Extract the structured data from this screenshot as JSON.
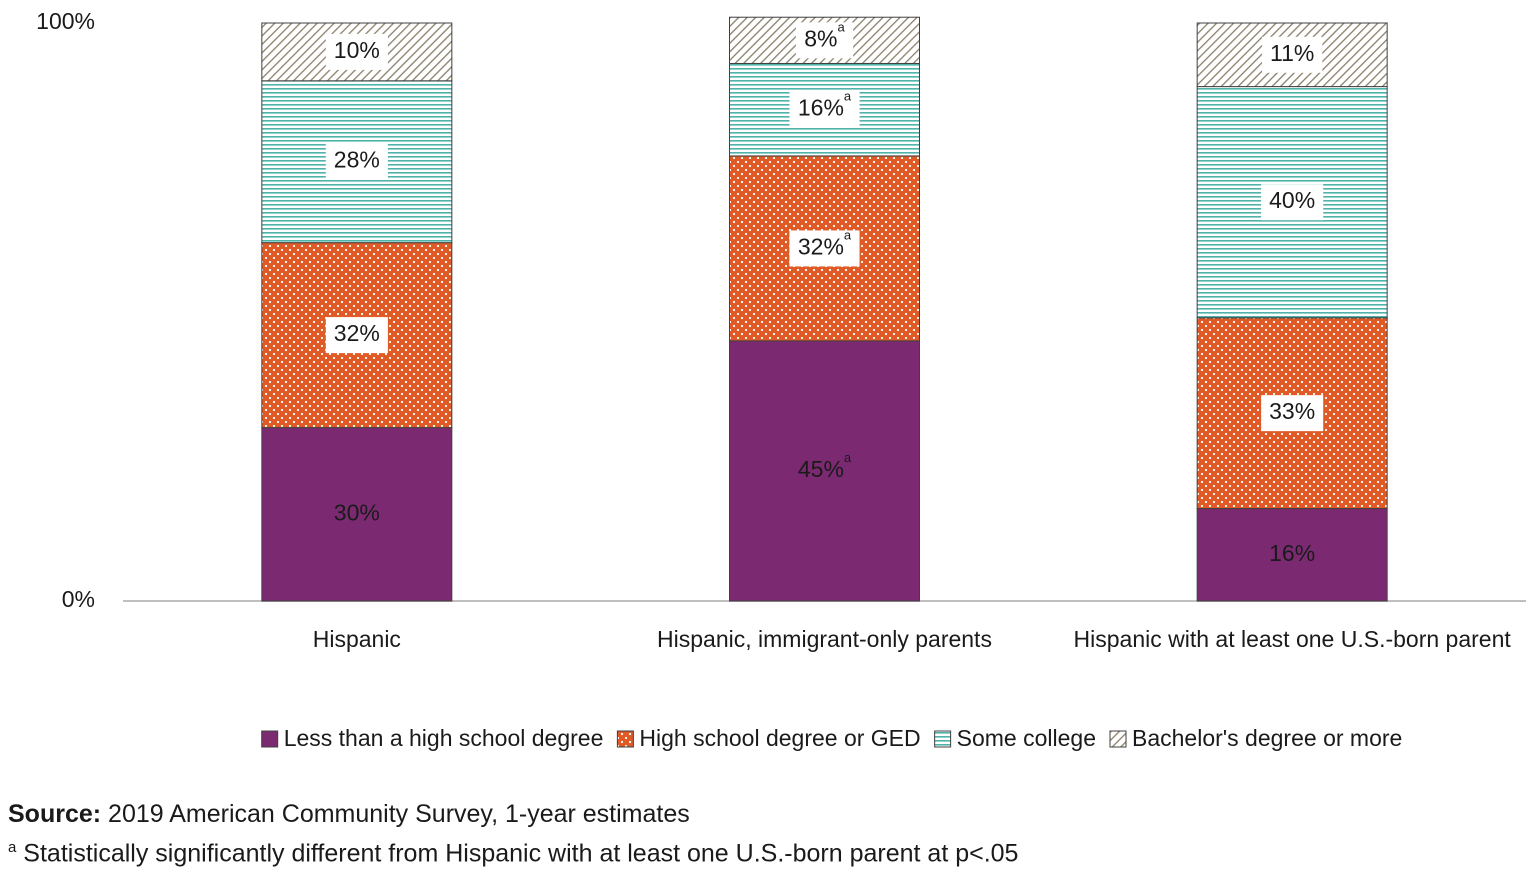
{
  "chart_data": {
    "type": "stacked-bar",
    "categories": [
      "Hispanic",
      "Hispanic, immigrant-only parents",
      "Hispanic with at least one U.S.-born parent"
    ],
    "series": [
      {
        "name": "Less than a high school degree",
        "color": "#7b2a72",
        "pattern": "solid",
        "values": [
          30,
          45,
          16
        ],
        "value_labels": [
          "30%",
          "45%",
          "16%"
        ],
        "value_notes": [
          null,
          "a",
          null
        ]
      },
      {
        "name": "High school degree or GED",
        "color": "#e05a26",
        "pattern": "dots",
        "values": [
          32,
          32,
          33
        ],
        "value_labels": [
          "32%",
          "32%",
          "33%"
        ],
        "value_notes": [
          null,
          "a",
          null
        ]
      },
      {
        "name": "Some college",
        "color": "#4fb3aa",
        "pattern": "horizontal-lines",
        "values": [
          28,
          16,
          40
        ],
        "value_labels": [
          "28%",
          "16%",
          "40%"
        ],
        "value_notes": [
          null,
          "a",
          null
        ]
      },
      {
        "name": "Bachelor's degree or more",
        "color": "#8a7f6a",
        "pattern": "diagonal-lines",
        "values": [
          10,
          8,
          11
        ],
        "value_labels": [
          "10%",
          "8%",
          "11%"
        ],
        "value_notes": [
          null,
          "a",
          null
        ]
      }
    ],
    "ylim": [
      0,
      100
    ],
    "yticks": [
      {
        "value": 0,
        "label": "0%"
      },
      {
        "value": 100,
        "label": "100%"
      }
    ],
    "grid": false,
    "legend": "bottom",
    "source_label": "Source:",
    "source": "2019 American Community Survey, 1-year estimates",
    "footnote_marker": "a",
    "footnote": "Statistically significantly different from Hispanic with at least one U.S.-born parent at p<.05"
  }
}
